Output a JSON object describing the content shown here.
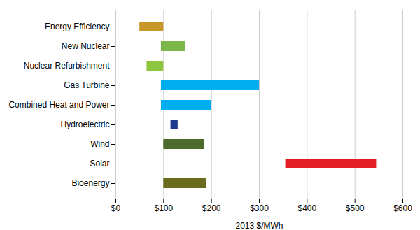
{
  "chart_data": {
    "type": "bar",
    "orientation": "horizontal",
    "categories": [
      "Energy Efficiency",
      "New Nuclear",
      "Nuclear Refurbishment",
      "Gas Turbine",
      "Combined Heat and Power",
      "Hydroelectric",
      "Wind",
      "Solar",
      "Bioenergy"
    ],
    "values": [
      [
        50,
        100
      ],
      [
        95,
        145
      ],
      [
        65,
        100
      ],
      [
        95,
        300
      ],
      [
        95,
        200
      ],
      [
        115,
        130
      ],
      [
        100,
        185
      ],
      [
        355,
        545
      ],
      [
        100,
        190
      ]
    ],
    "colors": [
      "#C8972A",
      "#7AB648",
      "#8DC63F",
      "#00AEEF",
      "#00AEEF",
      "#1F3A8C",
      "#4D6B2A",
      "#E31E26",
      "#6B6B1E"
    ],
    "xlabel": "2013 $/MWh",
    "xlim": [
      0,
      600
    ],
    "xticks": [
      {
        "value": 0,
        "label": "$0"
      },
      {
        "value": 100,
        "label": "$100"
      },
      {
        "value": 200,
        "label": "$200"
      },
      {
        "value": 300,
        "label": "$300"
      },
      {
        "value": 400,
        "label": "$400"
      },
      {
        "value": 500,
        "label": "$500"
      },
      {
        "value": 600,
        "label": "$600"
      }
    ],
    "grid": true
  }
}
